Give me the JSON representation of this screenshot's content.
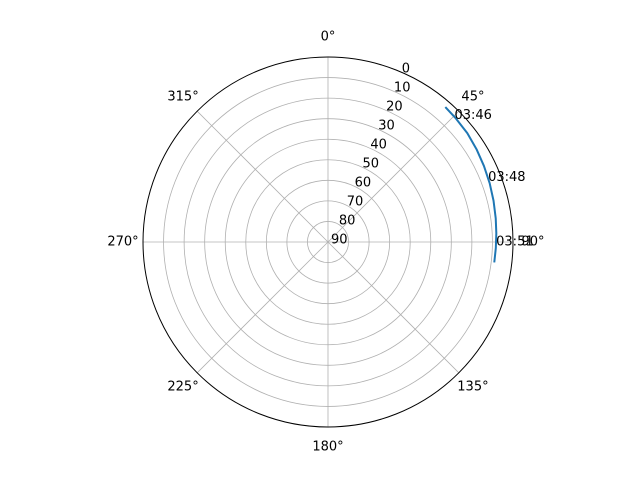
{
  "chart_data": {
    "type": "polar-line",
    "theta_zero": "top",
    "theta_direction": "clockwise",
    "theta_ticks": [
      {
        "deg": 0,
        "label": "0°"
      },
      {
        "deg": 45,
        "label": "45°"
      },
      {
        "deg": 90,
        "label": "90°"
      },
      {
        "deg": 135,
        "label": "135°"
      },
      {
        "deg": 180,
        "label": "180°"
      },
      {
        "deg": 225,
        "label": "225°"
      },
      {
        "deg": 270,
        "label": "270°"
      },
      {
        "deg": 315,
        "label": "315°"
      }
    ],
    "r_ticks": [
      0,
      10,
      20,
      30,
      40,
      50,
      60,
      70,
      80,
      90
    ],
    "r_label_angle_deg": 22.5,
    "r_inverted": true,
    "r_range": [
      0,
      90
    ],
    "grid": true,
    "series": [
      {
        "color": "#1f77b4",
        "points": [
          {
            "theta": 41,
            "r": 3
          },
          {
            "theta": 46,
            "r": 3.5
          },
          {
            "theta": 52,
            "r": 4
          },
          {
            "theta": 58,
            "r": 4.8
          },
          {
            "theta": 64,
            "r": 5.6
          },
          {
            "theta": 70,
            "r": 6.3
          },
          {
            "theta": 76,
            "r": 7
          },
          {
            "theta": 82,
            "r": 7.6
          },
          {
            "theta": 87,
            "r": 8
          },
          {
            "theta": 92,
            "r": 8.3
          },
          {
            "theta": 97,
            "r": 8.5
          }
        ]
      }
    ],
    "annotations": [
      {
        "text": "03:46",
        "theta": 45,
        "r": 3
      },
      {
        "text": "03:48",
        "theta": 68,
        "r": 6
      },
      {
        "text": "03:51",
        "theta": 90,
        "r": 8.2
      }
    ]
  }
}
